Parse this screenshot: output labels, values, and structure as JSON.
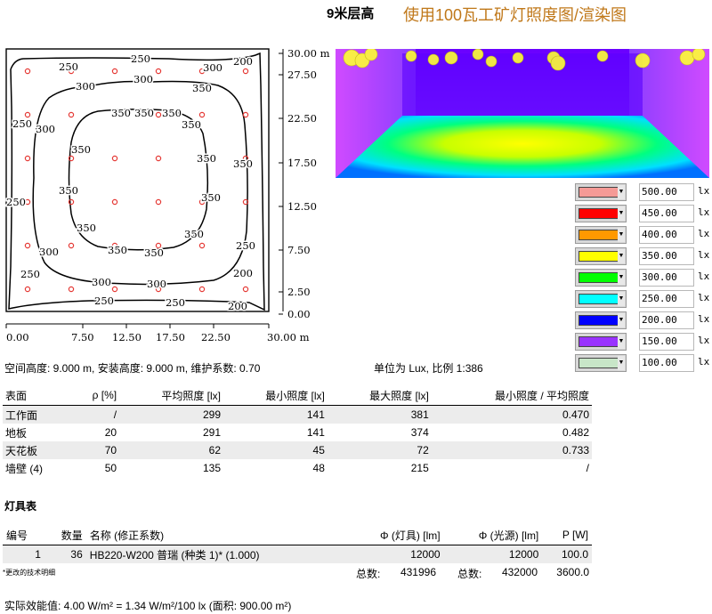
{
  "header": {
    "height_label": "9米层高",
    "title": "使用100瓦工矿灯照度图/渲染图"
  },
  "plot": {
    "x_ticks": [
      "0.00",
      "7.50",
      "12.50",
      "17.50",
      "22.50",
      "30.00 m"
    ],
    "y_ticks": [
      "30.00 m",
      "27.50",
      "22.50",
      "17.50",
      "12.50",
      "7.50",
      "2.50",
      "0.00"
    ],
    "contour_labels": [
      "250",
      "200",
      "250",
      "300",
      "300",
      "250",
      "350",
      "350",
      "300",
      "350",
      "350",
      "250",
      "350",
      "350",
      "300",
      "300",
      "300",
      "350",
      "350",
      "350",
      "250",
      "350",
      "250",
      "300",
      "300",
      "250",
      "250",
      "200"
    ]
  },
  "legend": [
    {
      "color": "#f59a96",
      "value": "500.00",
      "unit": "lx"
    },
    {
      "color": "#ff0000",
      "value": "450.00",
      "unit": "lx"
    },
    {
      "color": "#ff9900",
      "value": "400.00",
      "unit": "lx"
    },
    {
      "color": "#ffff00",
      "value": "350.00",
      "unit": "lx"
    },
    {
      "color": "#00ff00",
      "value": "300.00",
      "unit": "lx"
    },
    {
      "color": "#00ffff",
      "value": "250.00",
      "unit": "lx"
    },
    {
      "color": "#0000ff",
      "value": "200.00",
      "unit": "lx"
    },
    {
      "color": "#9933ff",
      "value": "150.00",
      "unit": "lx"
    },
    {
      "color": "#c8e6c8",
      "value": "100.00",
      "unit": "lx"
    }
  ],
  "info": {
    "params": "空间高度: 9.000 m, 安装高度: 9.000 m, 维护系数: 0.70",
    "scale": "单位为 Lux, 比例 1:386"
  },
  "surface_table": {
    "headers": [
      "表面",
      "ρ [%]",
      "平均照度 [lx]",
      "最小照度 [lx]",
      "最大照度 [lx]",
      "最小照度 / 平均照度"
    ],
    "rows": [
      [
        "工作面",
        "/",
        "299",
        "141",
        "381",
        "0.470"
      ],
      [
        "地板",
        "20",
        "291",
        "141",
        "374",
        "0.482"
      ],
      [
        "天花板",
        "70",
        "62",
        "45",
        "72",
        "0.733"
      ],
      [
        "墙壁 (4)",
        "50",
        "135",
        "48",
        "215",
        "/"
      ]
    ]
  },
  "lamp_table": {
    "title": "灯具表",
    "headers": [
      "编号",
      "数量",
      "名称 (修正系数)",
      "Φ (灯具) [lm]",
      "Φ (光源) [lm]",
      "P [W]"
    ],
    "rows": [
      [
        "1",
        "36",
        "HB220-W200 普瑞 (种类 1)* (1.000)",
        "12000",
        "12000",
        "100.0"
      ]
    ],
    "footnote": "*更改的技术明细",
    "total_label_1": "总数:",
    "total_lum": "431996",
    "total_label_2": "总数:",
    "total_src": "432000",
    "total_power": "3600.0"
  },
  "efficiency": "实际效能值: 4.00 W/m² = 1.34 W/m²/100 lx (面积: 900.00 m²)"
}
